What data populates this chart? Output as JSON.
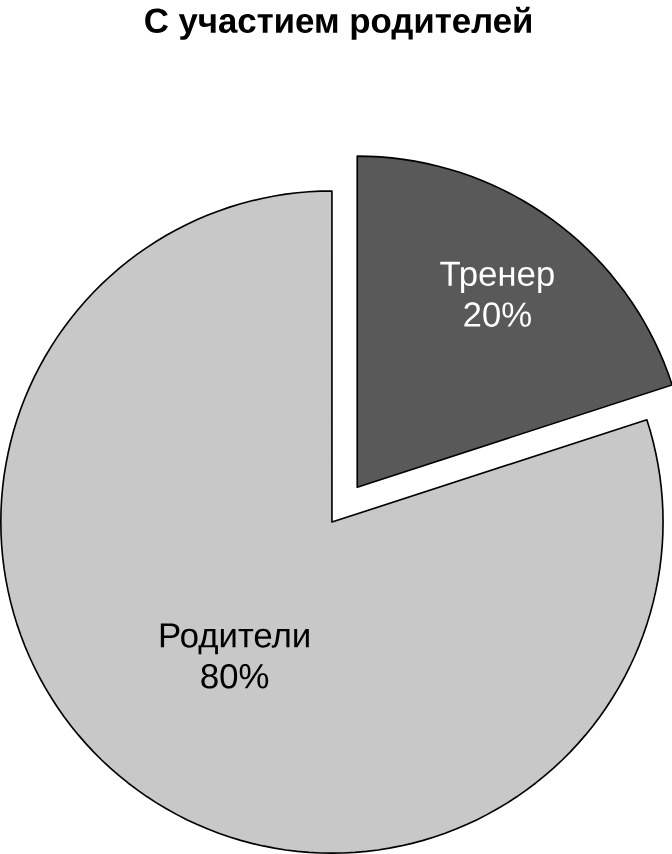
{
  "chart_data": {
    "type": "pie",
    "title": "С участием родителей",
    "categories": [
      "Тренер",
      "Родители"
    ],
    "values": [
      20,
      80
    ],
    "value_labels": [
      "20%",
      "80%"
    ],
    "colors": [
      "#595959",
      "#c8c8c8"
    ]
  }
}
